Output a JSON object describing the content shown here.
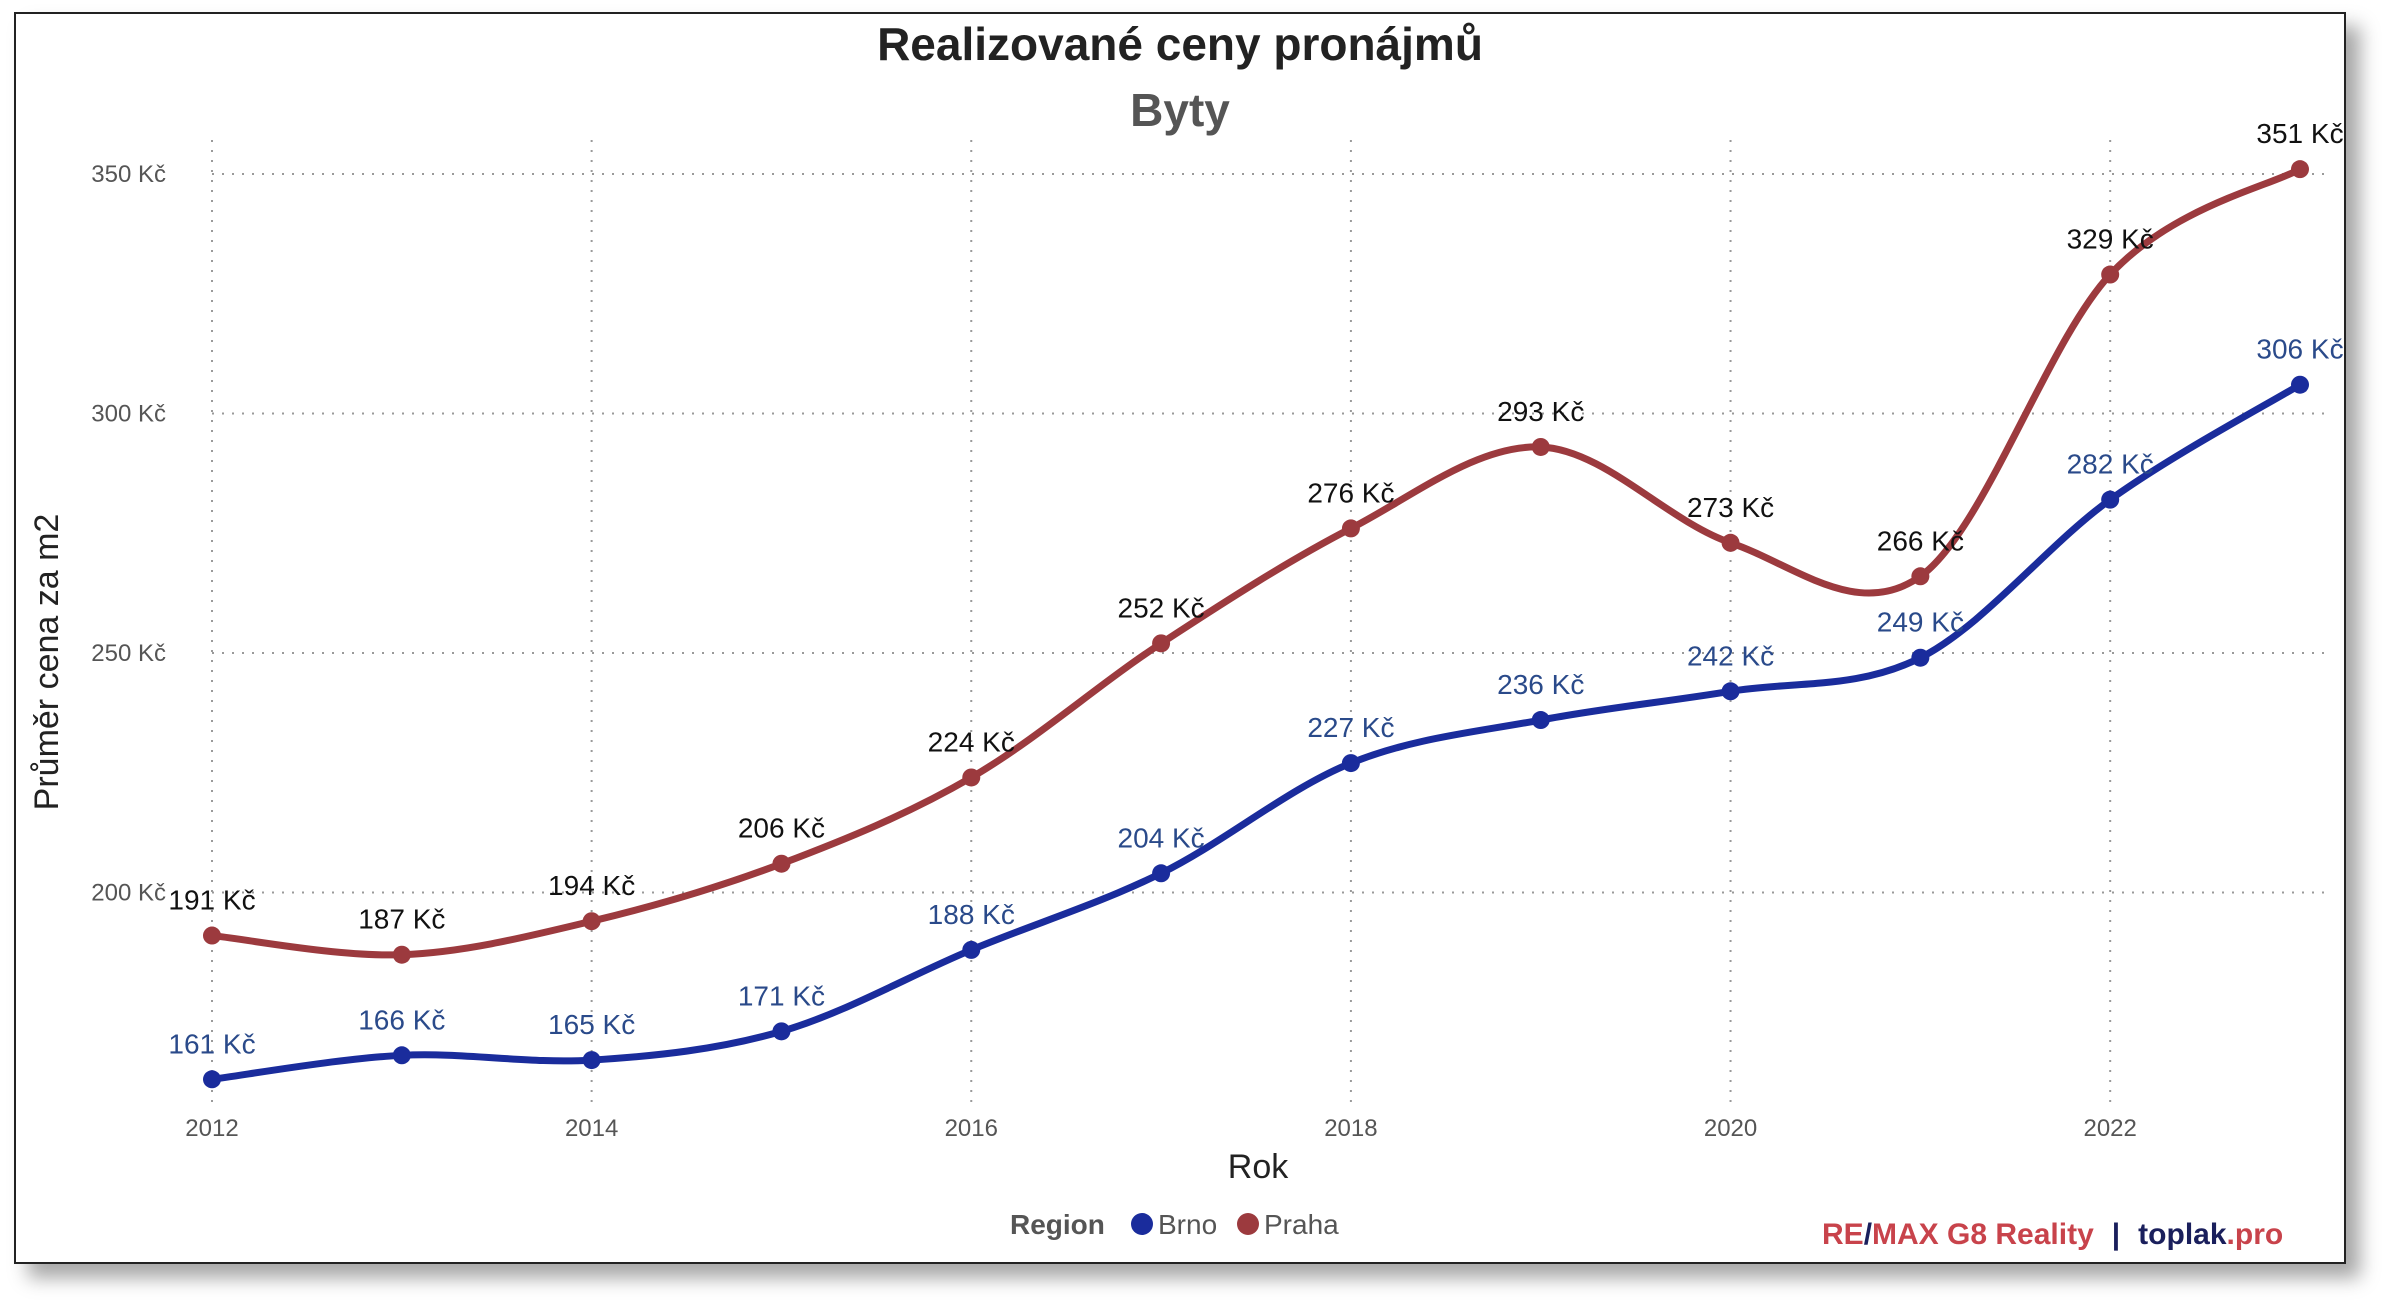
{
  "chart_data": {
    "type": "line",
    "title": "Realizované ceny pronájmů",
    "subtitle": "Byty",
    "xlabel": "Rok",
    "ylabel": "Průměr cena za m2",
    "x": [
      2012,
      2013,
      2014,
      2015,
      2016,
      2017,
      2018,
      2019,
      2020,
      2021,
      2022,
      2023
    ],
    "x_ticks": [
      "2012",
      "2014",
      "2016",
      "2018",
      "2020",
      "2022"
    ],
    "y_ticks": [
      "200 Kč",
      "250 Kč",
      "300 Kč",
      "350 Kč"
    ],
    "xlim": [
      2012,
      2023
    ],
    "ylim": [
      155,
      355
    ],
    "grid": true,
    "legend_position": "bottom-center",
    "legend_title": "Region",
    "series": [
      {
        "name": "Brno",
        "color": "#1a2c9c",
        "label_color": "#2a4a8a",
        "values": [
          161,
          166,
          165,
          171,
          188,
          204,
          227,
          236,
          242,
          249,
          282,
          306
        ],
        "labels": [
          "161 Kč",
          "166 Kč",
          "165 Kč",
          "171 Kč",
          "188 Kč",
          "204 Kč",
          "227 Kč",
          "236 Kč",
          "242 Kč",
          "249 Kč",
          "282 Kč",
          "306 Kč"
        ]
      },
      {
        "name": "Praha",
        "color": "#9c3a3e",
        "label_color": "#111111",
        "values": [
          191,
          187,
          194,
          206,
          224,
          252,
          276,
          293,
          273,
          266,
          329,
          351
        ],
        "labels": [
          "191 Kč",
          "187 Kč",
          "194 Kč",
          "206 Kč",
          "224 Kč",
          "252 Kč",
          "276 Kč",
          "293 Kč",
          "273 Kč",
          "266 Kč",
          "329 Kč",
          "351 Kč"
        ]
      }
    ]
  },
  "credit": {
    "part1": "RE",
    "sep": "/",
    "part2": "MAX G8 Reality",
    "divider": "|",
    "part3": "toplak",
    "part4": ".pro",
    "color_brand": "#c8434b",
    "color_dark": "#1a1f5c"
  }
}
